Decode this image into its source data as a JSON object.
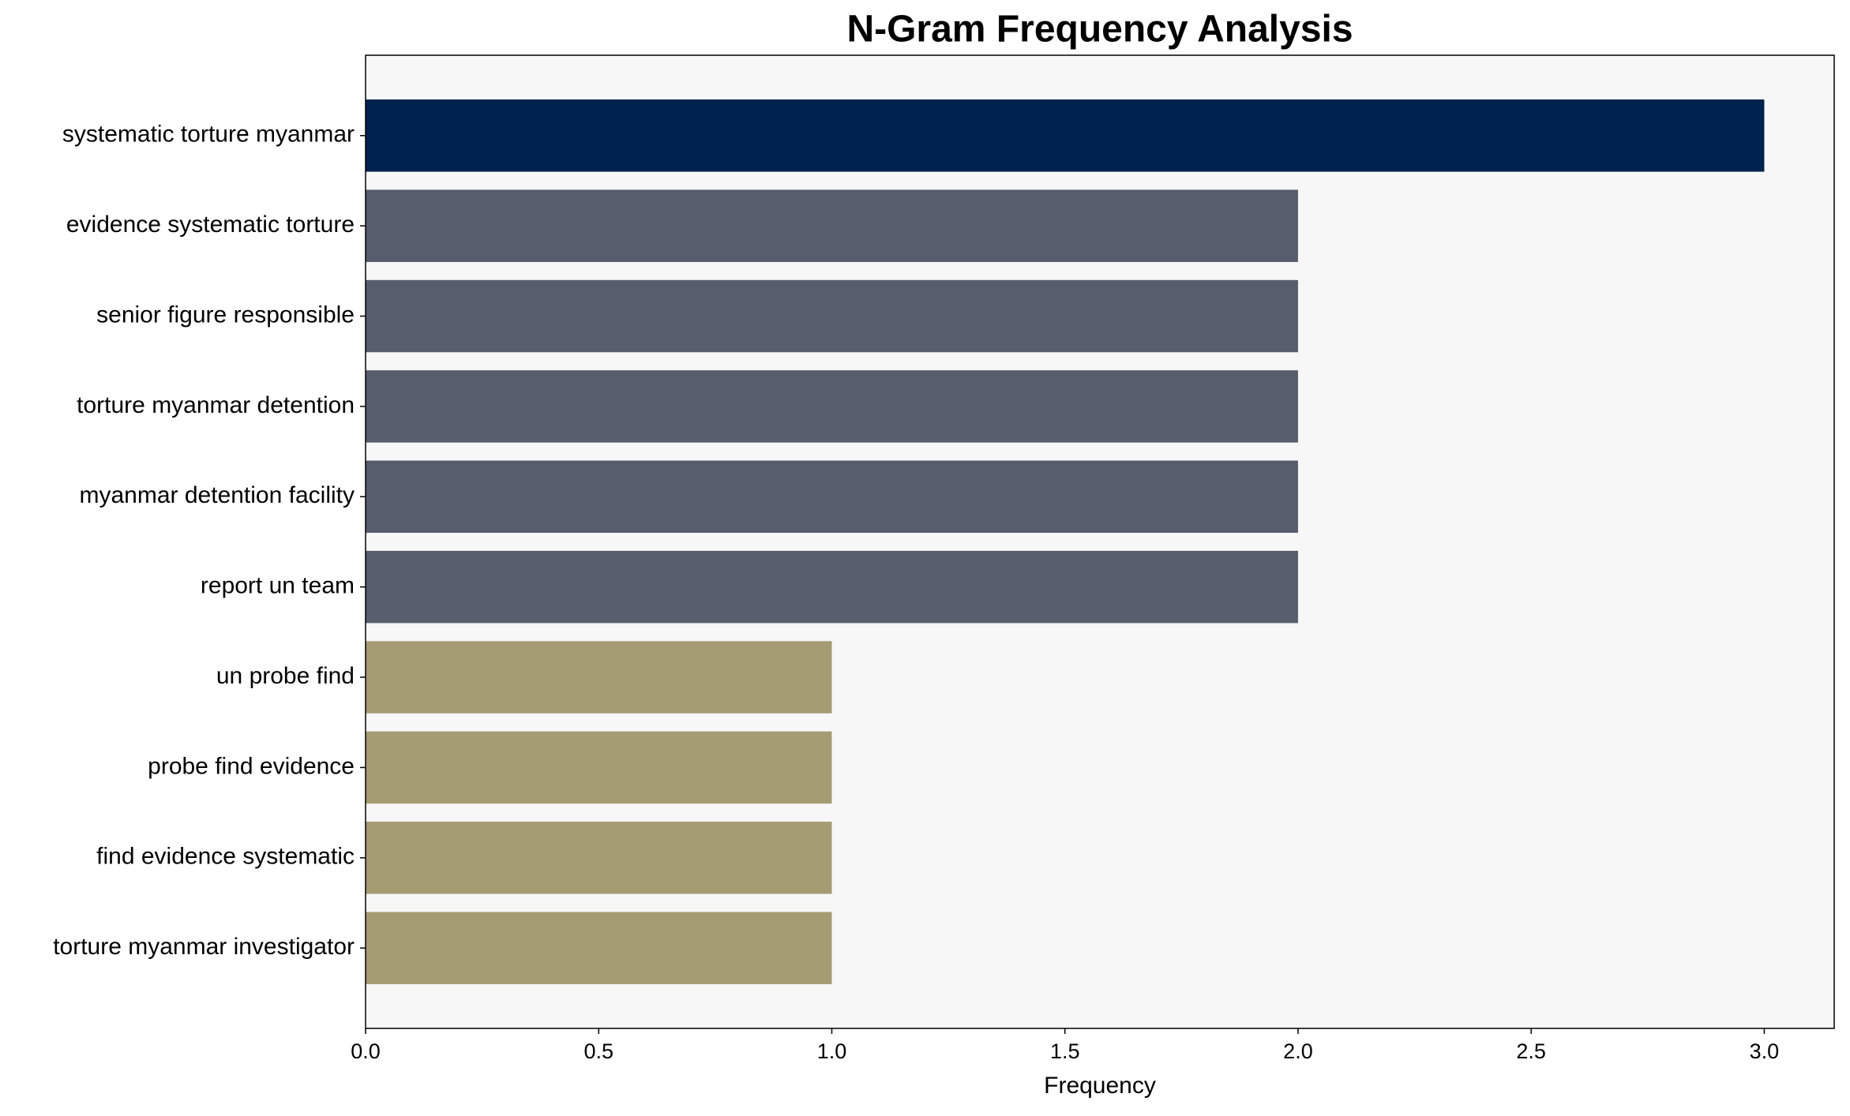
{
  "chart_data": {
    "type": "barh",
    "title": "N-Gram Frequency Analysis",
    "x_label": "Frequency",
    "categories": [
      "systematic torture myanmar",
      "evidence systematic torture",
      "senior figure responsible",
      "torture myanmar detention",
      "myanmar detention facility",
      "report un team",
      "un probe find",
      "probe find evidence",
      "find evidence systematic",
      "torture myanmar investigator"
    ],
    "values": [
      3,
      2,
      2,
      2,
      2,
      2,
      1,
      1,
      1,
      1
    ],
    "colors": [
      "#00224e",
      "#575d6d",
      "#575d6d",
      "#575d6d",
      "#575d6d",
      "#575d6d",
      "#a59c74",
      "#a59c74",
      "#a59c74",
      "#a59c74"
    ],
    "xlim": [
      0,
      3.15
    ],
    "xticks": [
      {
        "value": 0,
        "label": "0.0"
      },
      {
        "value": 0.5,
        "label": "0.5"
      },
      {
        "value": 1,
        "label": "1.0"
      },
      {
        "value": 1.5,
        "label": "1.5"
      },
      {
        "value": 2,
        "label": "2.0"
      },
      {
        "value": 2.5,
        "label": "2.5"
      },
      {
        "value": 3,
        "label": "3.0"
      }
    ],
    "background": "#f7f7f7"
  }
}
